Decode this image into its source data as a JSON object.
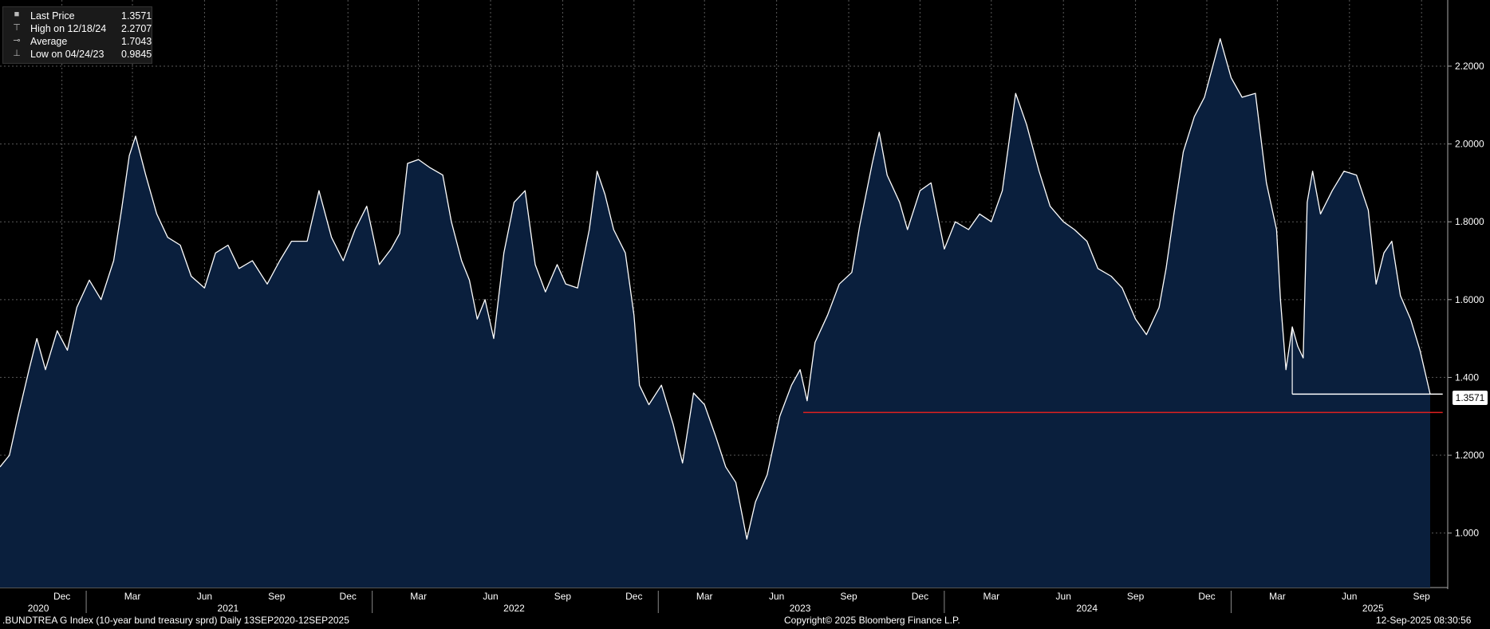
{
  "legend": {
    "last_price_label": "Last Price",
    "last_price_value": "1.3571",
    "high_label": "High on 12/18/24",
    "high_value": "2.2707",
    "average_label": "Average",
    "average_value": "1.7043",
    "low_label": "Low on 04/24/23",
    "low_value": "0.9845"
  },
  "footer": {
    "ticker": ".BUNDTREA G Index (10-year bund treasury sprd)  Daily 13SEP2020-12SEP2025",
    "copyright": "Copyright© 2025 Bloomberg Finance L.P.",
    "timestamp": "12-Sep-2025 08:30:56"
  },
  "last_badge": "1.3571",
  "colors": {
    "area": "#0a1f3d",
    "line": "#ffffff",
    "ref_line": "#e02020",
    "grid": "#5a5a5a"
  },
  "chart_data": {
    "type": "area",
    "y_ticks": [
      "1.000",
      "1.2000",
      "1.400",
      "1.6000",
      "1.8000",
      "2.0000",
      "2.2000"
    ],
    "y_tick_values": [
      1.0,
      1.2,
      1.4,
      1.6,
      1.8,
      2.0,
      2.2
    ],
    "ylim": [
      0.86,
      2.37
    ],
    "x_range": [
      "2020-09-13",
      "2025-09-12"
    ],
    "month_ticks": [
      {
        "label": "Dec",
        "date": "2020-12-01"
      },
      {
        "label": "Mar",
        "date": "2021-03-01"
      },
      {
        "label": "Jun",
        "date": "2021-06-01"
      },
      {
        "label": "Sep",
        "date": "2021-09-01"
      },
      {
        "label": "Dec",
        "date": "2021-12-01"
      },
      {
        "label": "Mar",
        "date": "2022-03-01"
      },
      {
        "label": "Jun",
        "date": "2022-06-01"
      },
      {
        "label": "Sep",
        "date": "2022-09-01"
      },
      {
        "label": "Dec",
        "date": "2022-12-01"
      },
      {
        "label": "Mar",
        "date": "2023-03-01"
      },
      {
        "label": "Jun",
        "date": "2023-06-01"
      },
      {
        "label": "Sep",
        "date": "2023-09-01"
      },
      {
        "label": "Dec",
        "date": "2023-12-01"
      },
      {
        "label": "Mar",
        "date": "2024-03-01"
      },
      {
        "label": "Jun",
        "date": "2024-06-01"
      },
      {
        "label": "Sep",
        "date": "2024-09-01"
      },
      {
        "label": "Dec",
        "date": "2024-12-01"
      },
      {
        "label": "Mar",
        "date": "2025-03-01"
      },
      {
        "label": "Jun",
        "date": "2025-06-01"
      },
      {
        "label": "Sep",
        "date": "2025-09-01"
      }
    ],
    "year_labels": [
      {
        "label": "2020",
        "date": "2020-11-01"
      },
      {
        "label": "2021",
        "date": "2021-07-01"
      },
      {
        "label": "2022",
        "date": "2022-07-01"
      },
      {
        "label": "2023",
        "date": "2023-07-01"
      },
      {
        "label": "2024",
        "date": "2024-07-01"
      },
      {
        "label": "2025",
        "date": "2025-07-01"
      }
    ],
    "year_separators": [
      "2021-01-01",
      "2022-01-01",
      "2023-01-01",
      "2024-01-01",
      "2025-01-01"
    ],
    "series": [
      {
        "name": "Last Price",
        "points": [
          [
            "2020-09-13",
            1.17
          ],
          [
            "2020-09-25",
            1.2
          ],
          [
            "2020-10-06",
            1.3
          ],
          [
            "2020-10-20",
            1.42
          ],
          [
            "2020-10-30",
            1.5
          ],
          [
            "2020-11-10",
            1.42
          ],
          [
            "2020-11-25",
            1.52
          ],
          [
            "2020-12-08",
            1.47
          ],
          [
            "2020-12-20",
            1.58
          ],
          [
            "2021-01-05",
            1.65
          ],
          [
            "2021-01-20",
            1.6
          ],
          [
            "2021-02-05",
            1.7
          ],
          [
            "2021-02-15",
            1.83
          ],
          [
            "2021-02-25",
            1.97
          ],
          [
            "2021-03-05",
            2.02
          ],
          [
            "2021-03-18",
            1.92
          ],
          [
            "2021-04-01",
            1.82
          ],
          [
            "2021-04-15",
            1.76
          ],
          [
            "2021-05-01",
            1.74
          ],
          [
            "2021-05-15",
            1.66
          ],
          [
            "2021-06-01",
            1.63
          ],
          [
            "2021-06-15",
            1.72
          ],
          [
            "2021-07-01",
            1.74
          ],
          [
            "2021-07-15",
            1.68
          ],
          [
            "2021-08-01",
            1.7
          ],
          [
            "2021-08-20",
            1.64
          ],
          [
            "2021-09-05",
            1.7
          ],
          [
            "2021-09-20",
            1.75
          ],
          [
            "2021-10-10",
            1.75
          ],
          [
            "2021-10-25",
            1.88
          ],
          [
            "2021-11-10",
            1.76
          ],
          [
            "2021-11-25",
            1.7
          ],
          [
            "2021-12-10",
            1.78
          ],
          [
            "2021-12-25",
            1.84
          ],
          [
            "2022-01-10",
            1.69
          ],
          [
            "2022-01-25",
            1.73
          ],
          [
            "2022-02-05",
            1.77
          ],
          [
            "2022-02-15",
            1.95
          ],
          [
            "2022-03-01",
            1.96
          ],
          [
            "2022-03-15",
            1.94
          ],
          [
            "2022-04-01",
            1.92
          ],
          [
            "2022-04-12",
            1.8
          ],
          [
            "2022-04-25",
            1.7
          ],
          [
            "2022-05-05",
            1.65
          ],
          [
            "2022-05-15",
            1.55
          ],
          [
            "2022-05-25",
            1.6
          ],
          [
            "2022-06-05",
            1.5
          ],
          [
            "2022-06-18",
            1.72
          ],
          [
            "2022-07-01",
            1.85
          ],
          [
            "2022-07-15",
            1.88
          ],
          [
            "2022-07-28",
            1.69
          ],
          [
            "2022-08-10",
            1.62
          ],
          [
            "2022-08-25",
            1.69
          ],
          [
            "2022-09-05",
            1.64
          ],
          [
            "2022-09-20",
            1.63
          ],
          [
            "2022-10-05",
            1.78
          ],
          [
            "2022-10-15",
            1.93
          ],
          [
            "2022-10-25",
            1.87
          ],
          [
            "2022-11-05",
            1.78
          ],
          [
            "2022-11-20",
            1.72
          ],
          [
            "2022-12-01",
            1.56
          ],
          [
            "2022-12-08",
            1.38
          ],
          [
            "2022-12-20",
            1.33
          ],
          [
            "2023-01-05",
            1.38
          ],
          [
            "2023-01-20",
            1.28
          ],
          [
            "2023-02-01",
            1.18
          ],
          [
            "2023-02-15",
            1.36
          ],
          [
            "2023-03-01",
            1.33
          ],
          [
            "2023-03-15",
            1.25
          ],
          [
            "2023-03-28",
            1.17
          ],
          [
            "2023-04-10",
            1.13
          ],
          [
            "2023-04-24",
            0.9845
          ],
          [
            "2023-05-05",
            1.08
          ],
          [
            "2023-05-20",
            1.15
          ],
          [
            "2023-06-05",
            1.3
          ],
          [
            "2023-06-20",
            1.38
          ],
          [
            "2023-07-01",
            1.42
          ],
          [
            "2023-07-10",
            1.34
          ],
          [
            "2023-07-20",
            1.49
          ],
          [
            "2023-08-05",
            1.56
          ],
          [
            "2023-08-20",
            1.64
          ],
          [
            "2023-09-05",
            1.67
          ],
          [
            "2023-09-15",
            1.79
          ],
          [
            "2023-10-01",
            1.95
          ],
          [
            "2023-10-10",
            2.03
          ],
          [
            "2023-10-20",
            1.92
          ],
          [
            "2023-11-05",
            1.85
          ],
          [
            "2023-11-15",
            1.78
          ],
          [
            "2023-12-01",
            1.88
          ],
          [
            "2023-12-15",
            1.9
          ],
          [
            "2024-01-01",
            1.73
          ],
          [
            "2024-01-15",
            1.8
          ],
          [
            "2024-02-01",
            1.78
          ],
          [
            "2024-02-15",
            1.82
          ],
          [
            "2024-03-01",
            1.8
          ],
          [
            "2024-03-15",
            1.88
          ],
          [
            "2024-04-01",
            2.13
          ],
          [
            "2024-04-15",
            2.05
          ],
          [
            "2024-05-01",
            1.93
          ],
          [
            "2024-05-15",
            1.84
          ],
          [
            "2024-06-01",
            1.8
          ],
          [
            "2024-06-15",
            1.78
          ],
          [
            "2024-07-01",
            1.75
          ],
          [
            "2024-07-15",
            1.68
          ],
          [
            "2024-08-01",
            1.66
          ],
          [
            "2024-08-15",
            1.63
          ],
          [
            "2024-09-01",
            1.55
          ],
          [
            "2024-09-15",
            1.51
          ],
          [
            "2024-10-01",
            1.58
          ],
          [
            "2024-10-10",
            1.68
          ],
          [
            "2024-10-20",
            1.82
          ],
          [
            "2024-11-01",
            1.98
          ],
          [
            "2024-11-15",
            2.07
          ],
          [
            "2024-11-28",
            2.12
          ],
          [
            "2024-12-18",
            2.2707
          ],
          [
            "2025-01-01",
            2.17
          ],
          [
            "2025-01-15",
            2.12
          ],
          [
            "2025-02-01",
            2.13
          ],
          [
            "2025-02-15",
            1.9
          ],
          [
            "2025-02-28",
            1.78
          ],
          [
            "2025-03-05",
            1.6
          ],
          [
            "2025-03-12",
            1.42
          ],
          [
            "2025-03-20",
            1.53
          ],
          [
            "2025-03-27",
            1.48
          ],
          [
            "2025-04-03",
            1.45
          ],
          [
            "2025-04-08",
            1.85
          ],
          [
            "2025-04-15",
            1.93
          ],
          [
            "2025-04-25",
            1.82
          ],
          [
            "2025-05-10",
            1.88
          ],
          [
            "2025-05-25",
            1.93
          ],
          [
            "2025-06-10",
            1.92
          ],
          [
            "2025-06-25",
            1.83
          ],
          [
            "2025-07-05",
            1.64
          ],
          [
            "2025-07-15",
            1.72
          ],
          [
            "2025-07-25",
            1.75
          ],
          [
            "2025-08-05",
            1.61
          ],
          [
            "2025-08-18",
            1.55
          ],
          [
            "2025-08-30",
            1.47
          ],
          [
            "2025-09-12",
            1.3571
          ]
        ]
      }
    ],
    "reference_lines": [
      {
        "value": 1.31,
        "from": "2023-07-05",
        "to": "2025-09-28",
        "color": "#e02020"
      },
      {
        "value": 1.3571,
        "from": "2025-03-20",
        "to": "2025-09-28",
        "color": "#ffffff"
      }
    ]
  }
}
